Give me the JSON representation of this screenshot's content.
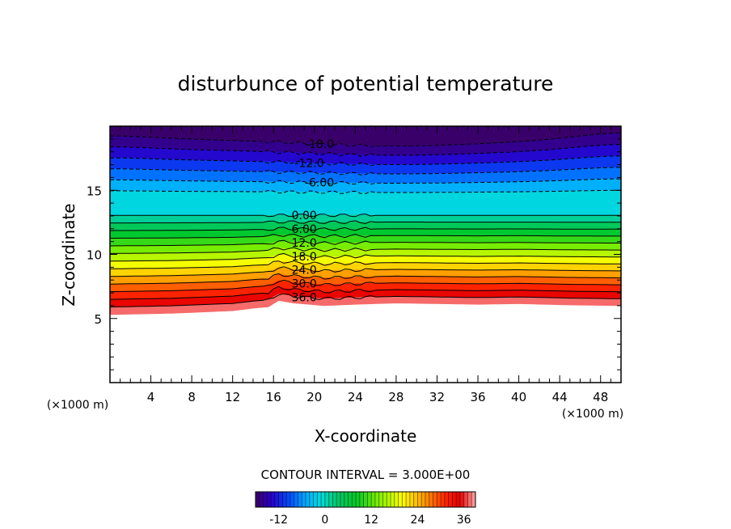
{
  "chart_data": {
    "type": "heatmap",
    "title": "disturbunce of potential temperature",
    "xlabel": "X-coordinate",
    "ylabel": "Z-coordinate",
    "x_unit": "(×1000 m)",
    "y_unit": "(×1000 m)",
    "xlim": [
      0,
      50
    ],
    "ylim": [
      0,
      20
    ],
    "x_ticks": [
      "4",
      "8",
      "12",
      "16",
      "20",
      "24",
      "28",
      "32",
      "36",
      "40",
      "44",
      "48"
    ],
    "y_ticks": [
      "5",
      "10",
      "15"
    ],
    "contour_interval_label": "CONTOUR INTERVAL = 3.000E+00",
    "contour_labels": [
      "-18.0",
      "-12.0",
      "-6.00",
      "0.00",
      "6.00",
      "12.0",
      "18.0",
      "24.0",
      "30.0",
      "36.0"
    ],
    "colorbar": {
      "range": [
        -18,
        39
      ],
      "ticks": [
        "-12",
        "0",
        "12",
        "24",
        "36"
      ]
    },
    "field_bottom_z": [
      5.3,
      5.35,
      5.4,
      5.5,
      5.6,
      5.8,
      5.9,
      6.4,
      6.2,
      6.0,
      6.1,
      6.2,
      6.15,
      6.1,
      6.15,
      6.05,
      6.0
    ],
    "field_x": [
      0,
      3,
      6,
      9,
      12,
      14,
      15.5,
      16.5,
      18,
      21,
      24,
      28,
      32,
      36,
      40,
      45,
      50
    ],
    "tropopause_z": 14.0,
    "colors": {
      "low": "#5a0090",
      "mid": "#00d8c0",
      "high": "#ff0000",
      "top": "#ff9a9a"
    }
  }
}
